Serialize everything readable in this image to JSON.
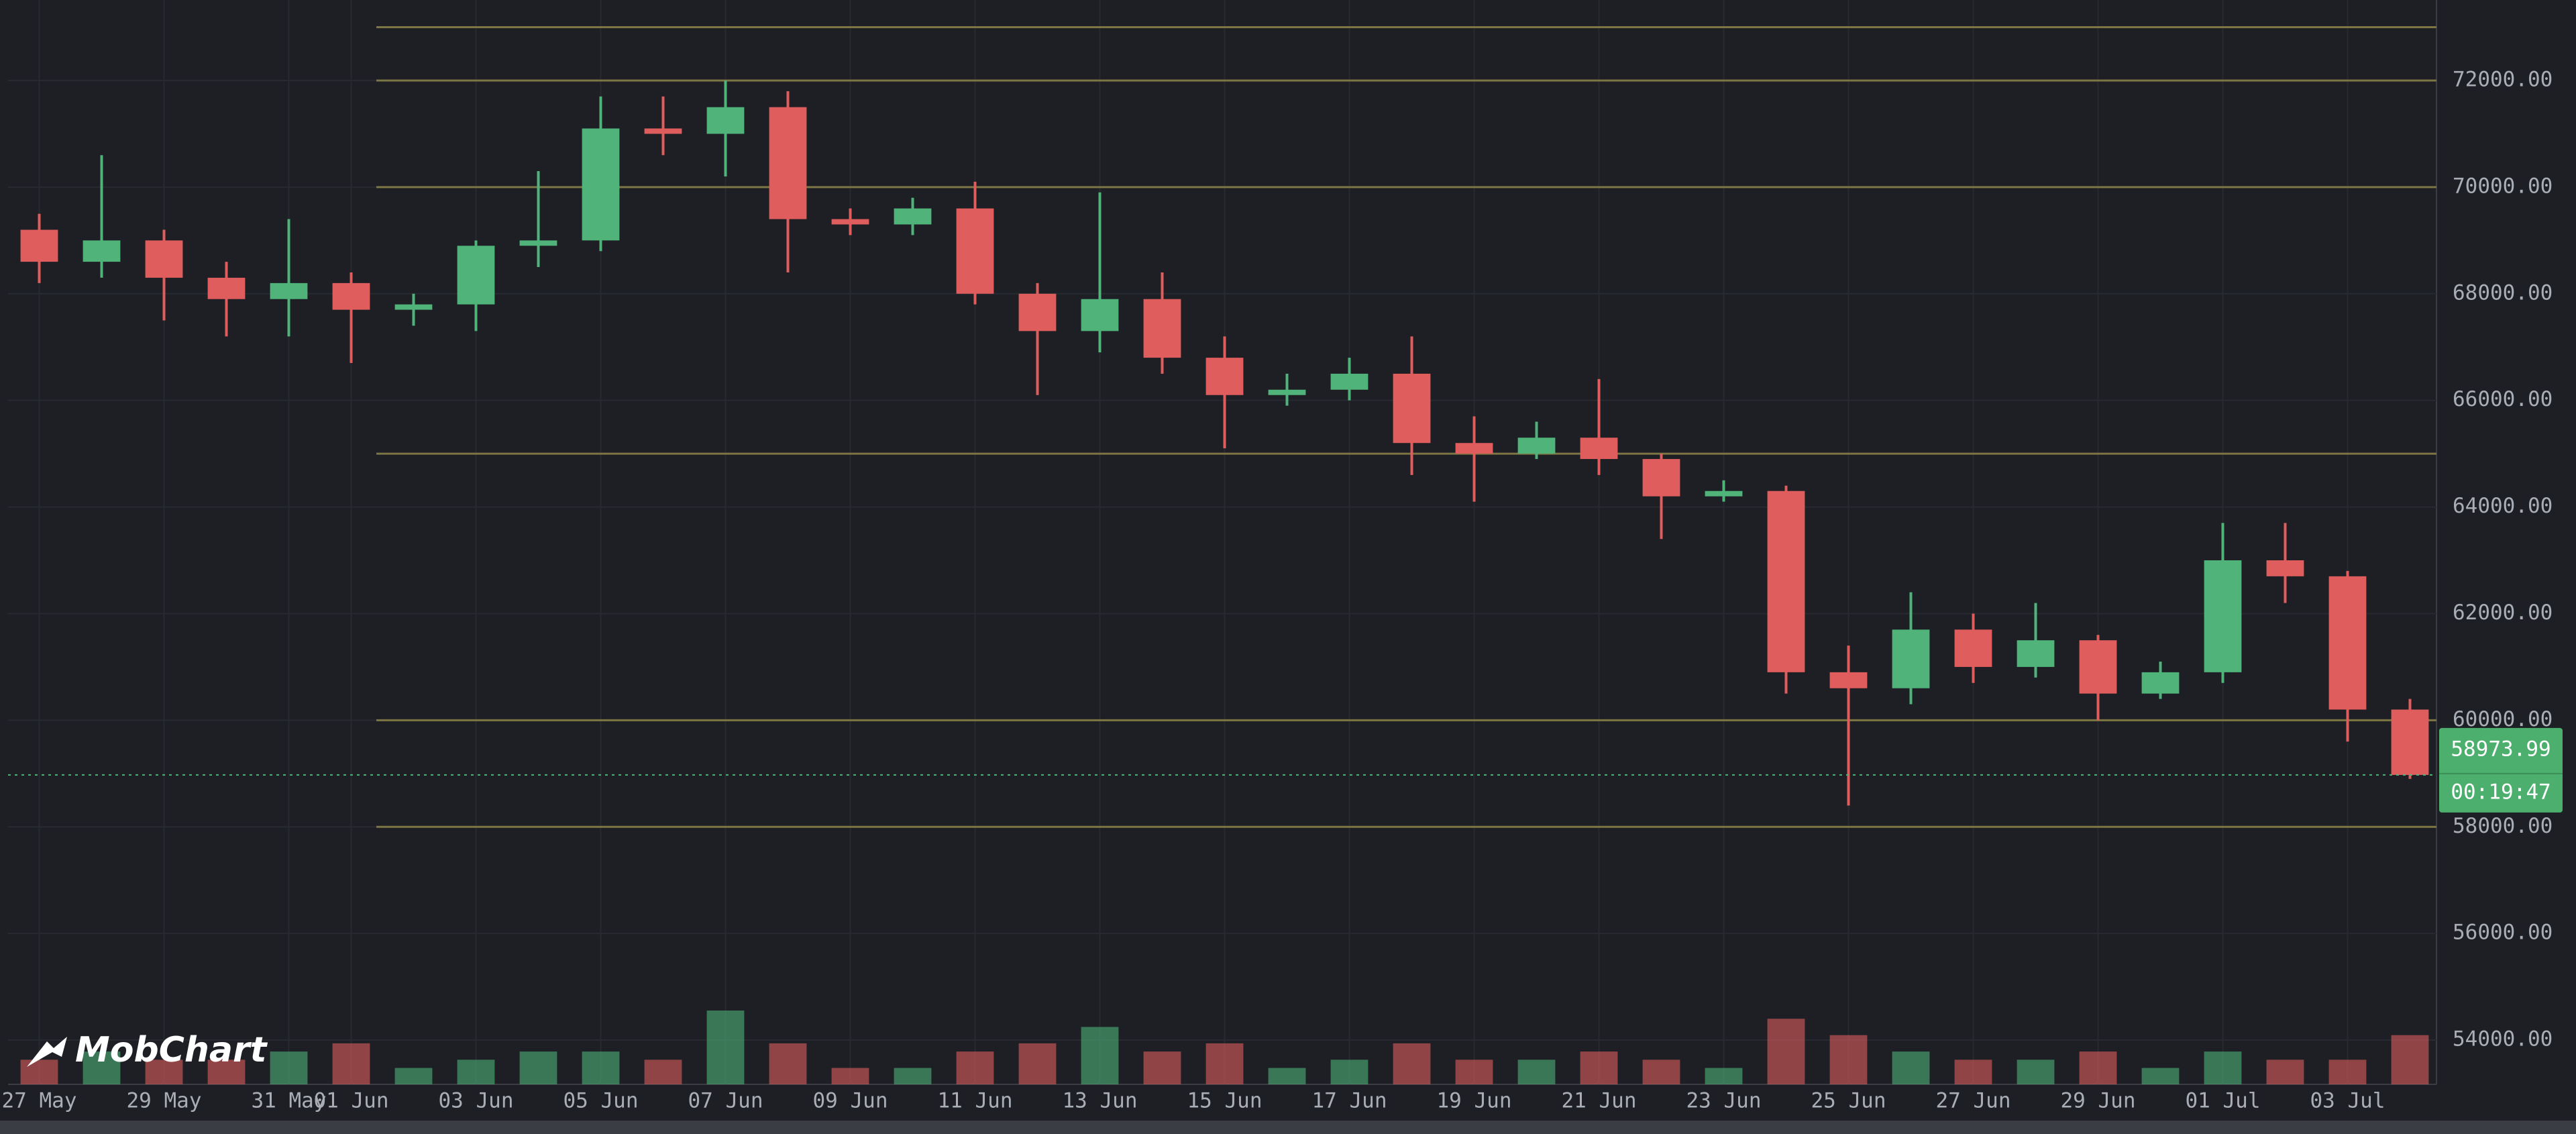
{
  "chart_data": {
    "type": "candlestick",
    "categories": [
      "27 May",
      null,
      "29 May",
      null,
      "31 May",
      "01 Jun",
      null,
      "03 Jun",
      null,
      "05 Jun",
      null,
      "07 Jun",
      null,
      "09 Jun",
      null,
      "11 Jun",
      null,
      "13 Jun",
      null,
      "15 Jun",
      null,
      "17 Jun",
      null,
      "19 Jun",
      null,
      "21 Jun",
      null,
      "23 Jun",
      null,
      "25 Jun",
      null,
      "27 Jun",
      null,
      "29 Jun",
      null,
      "01 Jul",
      null,
      "03 Jul",
      null
    ],
    "open": [
      69200,
      68600,
      69000,
      68300,
      67900,
      68200,
      67700,
      67800,
      68900,
      69000,
      71100,
      71000,
      71500,
      69400,
      69300,
      69600,
      68000,
      67300,
      67900,
      66800,
      66100,
      66200,
      66500,
      65200,
      65000,
      65300,
      64900,
      64200,
      64300,
      60900,
      60600,
      61700,
      61000,
      61500,
      60500,
      60900,
      63000,
      62700,
      60200
    ],
    "high": [
      69500,
      70600,
      69200,
      68600,
      69400,
      68400,
      68000,
      69000,
      70300,
      71700,
      71700,
      72000,
      71800,
      69600,
      69800,
      70100,
      68200,
      69900,
      68400,
      67200,
      66500,
      66800,
      67200,
      65700,
      65600,
      66400,
      65000,
      64500,
      64400,
      61400,
      62400,
      62000,
      62200,
      61600,
      61100,
      63700,
      63700,
      62800,
      60400
    ],
    "low": [
      68200,
      68300,
      67500,
      67200,
      67200,
      66700,
      67400,
      67300,
      68500,
      68800,
      70600,
      70200,
      68400,
      69100,
      69100,
      67800,
      66100,
      66900,
      66500,
      65100,
      65900,
      66000,
      64600,
      64100,
      64900,
      64600,
      63400,
      64100,
      60500,
      58400,
      60300,
      60700,
      60800,
      60000,
      60400,
      60700,
      62200,
      59600,
      58900
    ],
    "close": [
      68600,
      69000,
      68300,
      67900,
      68200,
      67700,
      67800,
      68900,
      69000,
      71100,
      71000,
      71500,
      69400,
      69300,
      69600,
      68000,
      67300,
      67900,
      66800,
      66100,
      66200,
      66500,
      65200,
      65000,
      65300,
      64900,
      64200,
      64300,
      60900,
      60600,
      61700,
      61000,
      61500,
      60500,
      60900,
      63000,
      62700,
      60200,
      58973.99
    ],
    "volume": [
      3,
      4,
      3,
      3,
      4,
      5,
      2,
      3,
      4,
      4,
      3,
      9,
      5,
      2,
      2,
      4,
      5,
      7,
      4,
      5,
      2,
      3,
      5,
      3,
      3,
      4,
      3,
      2,
      8,
      6,
      4,
      3,
      3,
      4,
      2,
      4,
      3,
      3,
      6
    ],
    "up_color": "#4fb37a",
    "down_color": "#e05d5d",
    "ylim": [
      53170,
      73510
    ],
    "yticks": [
      {
        "value": 54000,
        "label": "54000.00"
      },
      {
        "value": 56000,
        "label": "56000.00"
      },
      {
        "value": 58000,
        "label": "58000.00"
      },
      {
        "value": 60000,
        "label": "60000.00"
      },
      {
        "value": 62000,
        "label": "62000.00"
      },
      {
        "value": 64000,
        "label": "64000.00"
      },
      {
        "value": 66000,
        "label": "66000.00"
      },
      {
        "value": 68000,
        "label": "68000.00"
      },
      {
        "value": 70000,
        "label": "70000.00"
      },
      {
        "value": 72000,
        "label": "72000.00"
      }
    ],
    "levels": [
      73000,
      72000,
      70000,
      65000,
      60000,
      58000
    ],
    "level_color": "#7d7543",
    "grid": true,
    "last_price": 58973.99,
    "countdown": "00:19:47"
  },
  "watermark": "MobChart"
}
